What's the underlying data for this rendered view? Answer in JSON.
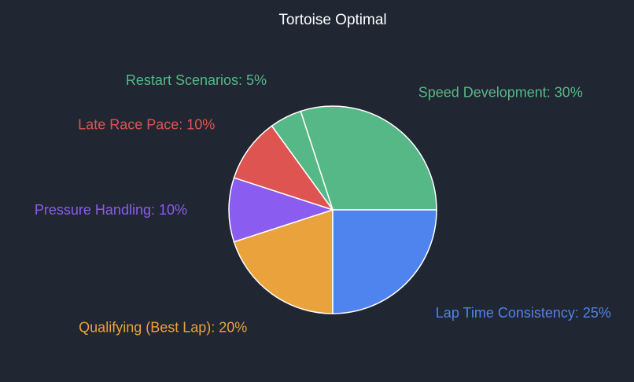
{
  "chart_data": {
    "type": "pie",
    "title": "Tortoise Optimal",
    "categories": [
      "Speed Development",
      "Restart Scenarios",
      "Late Race Pace",
      "Pressure Handling",
      "Qualifying (Best Lap)",
      "Lap Time Consistency"
    ],
    "values": [
      30,
      5,
      10,
      10,
      20,
      25
    ],
    "labels": [
      "Speed Development: 30%",
      "Restart Scenarios: 5%",
      "Late Race Pace: 10%",
      "Pressure Handling: 10%",
      "Qualifying (Best Lap): 20%",
      "Lap Time Consistency: 25%"
    ],
    "colors": [
      "#56b886",
      "#56b886",
      "#de5451",
      "#8a5cf0",
      "#eaa33c",
      "#4f83ee"
    ],
    "background": "#202632"
  }
}
